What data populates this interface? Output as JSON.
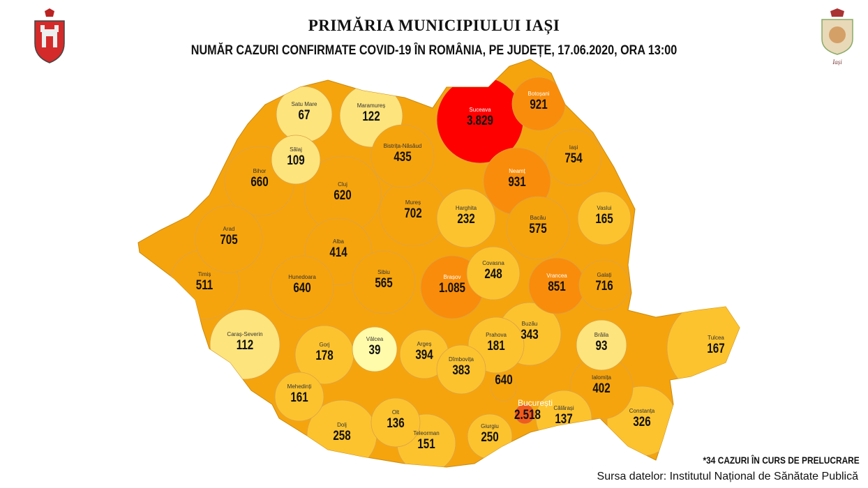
{
  "header": {
    "title": "PRIMĂRIA MUNICIPIULUI IAȘI",
    "subtitle": "NUMĂR CAZURI CONFIRMATE COVID-19 ÎN ROMÂNIA, PE JUDEȚE, 17.06.2020, ORA 13:00"
  },
  "logos": {
    "right_text": "Iași"
  },
  "colors": {
    "very_high": "#ff0000",
    "high": "#f98c0a",
    "medium": "#f6a40d",
    "low": "#fcc32e",
    "very_low": "#fde47c",
    "lowest": "#fffbaa",
    "bucuresti": "#f25a1d"
  },
  "counties": [
    {
      "name": "Satu Mare",
      "cases": "67"
    },
    {
      "name": "Maramureș",
      "cases": "122"
    },
    {
      "name": "Botoșani",
      "cases": "921"
    },
    {
      "name": "Suceava",
      "cases": "3.829"
    },
    {
      "name": "Sălaj",
      "cases": "109"
    },
    {
      "name": "Bistrița-Năsăud",
      "cases": "435"
    },
    {
      "name": "Iași",
      "cases": "754"
    },
    {
      "name": "Bihor",
      "cases": "660"
    },
    {
      "name": "Cluj",
      "cases": "620"
    },
    {
      "name": "Neamț",
      "cases": "931"
    },
    {
      "name": "Mureș",
      "cases": "702"
    },
    {
      "name": "Harghita",
      "cases": "232"
    },
    {
      "name": "Vaslui",
      "cases": "165"
    },
    {
      "name": "Arad",
      "cases": "705"
    },
    {
      "name": "Alba",
      "cases": "414"
    },
    {
      "name": "Bacău",
      "cases": "575"
    },
    {
      "name": "Timiș",
      "cases": "511"
    },
    {
      "name": "Hunedoara",
      "cases": "640"
    },
    {
      "name": "Sibiu",
      "cases": "565"
    },
    {
      "name": "Brașov",
      "cases": "1.085"
    },
    {
      "name": "Covasna",
      "cases": "248"
    },
    {
      "name": "Vrancea",
      "cases": "851"
    },
    {
      "name": "Galați",
      "cases": "716"
    },
    {
      "name": "Caraș-Severin",
      "cases": "112"
    },
    {
      "name": "Gorj",
      "cases": "178"
    },
    {
      "name": "Vâlcea",
      "cases": "39"
    },
    {
      "name": "Argeș",
      "cases": "394"
    },
    {
      "name": "Dîmbovița",
      "cases": "383"
    },
    {
      "name": "Prahova",
      "cases": "181"
    },
    {
      "name": "Buzău",
      "cases": "343"
    },
    {
      "name": "Brăila",
      "cases": "93"
    },
    {
      "name": "Tulcea",
      "cases": "167"
    },
    {
      "name": "Mehedinți",
      "cases": "161"
    },
    {
      "name": "Ialomița",
      "cases": "402"
    },
    {
      "name": "",
      "cases": "640"
    },
    {
      "name": "București",
      "cases": "2.518"
    },
    {
      "name": "Călărași",
      "cases": "137"
    },
    {
      "name": "Constanța",
      "cases": "326"
    },
    {
      "name": "Dolj",
      "cases": "258"
    },
    {
      "name": "Olt",
      "cases": "136"
    },
    {
      "name": "Teleorman",
      "cases": "151"
    },
    {
      "name": "Giurgiu",
      "cases": "250"
    }
  ],
  "footer": {
    "note": "*34 CAZURI ÎN CURS DE PRELUCRARE",
    "source": "Sursa datelor: Institutul Național de Sănătate Publică"
  }
}
